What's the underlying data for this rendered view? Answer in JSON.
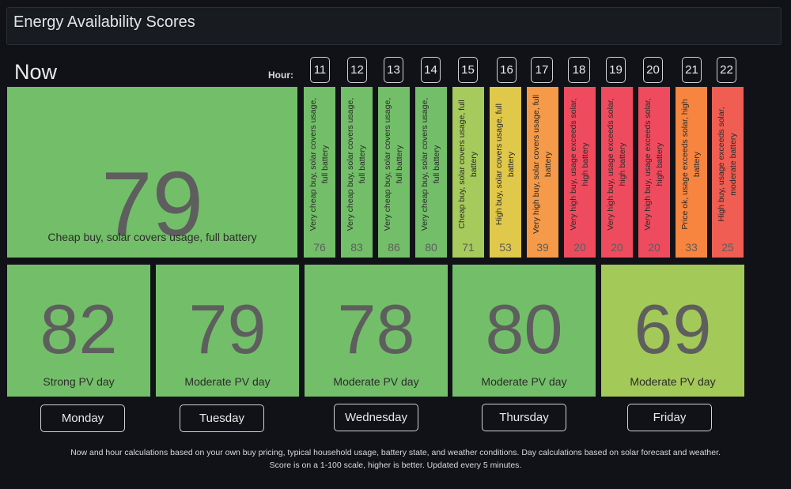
{
  "panel": {
    "title": "Energy Availability Scores"
  },
  "now": {
    "label": "Now",
    "score": "79",
    "description": "Cheap buy, solar covers usage, full battery",
    "color": "#73bf69"
  },
  "hour_label": "Hour:",
  "hours": [
    {
      "hour": "11",
      "score": "76",
      "text": "Very cheap buy, solar covers usage, full battery",
      "color": "#73bf69"
    },
    {
      "hour": "12",
      "score": "83",
      "text": "Very cheap buy, solar covers usage, full battery",
      "color": "#73bf69"
    },
    {
      "hour": "13",
      "score": "86",
      "text": "Very cheap buy, solar covers usage, full battery",
      "color": "#73bf69"
    },
    {
      "hour": "14",
      "score": "80",
      "text": "Very cheap buy, solar covers usage, full battery",
      "color": "#73bf69"
    },
    {
      "hour": "15",
      "score": "71",
      "text": "Cheap buy, solar covers usage, full battery",
      "color": "#a6ca5b"
    },
    {
      "hour": "16",
      "score": "53",
      "text": "High buy, solar covers usage, full battery",
      "color": "#e0c84a"
    },
    {
      "hour": "17",
      "score": "39",
      "text": "Very high buy, solar covers usage, full battery",
      "color": "#f49a48"
    },
    {
      "hour": "18",
      "score": "20",
      "text": "Very high buy, usage exceeds solar, high battery",
      "color": "#ef4b5e"
    },
    {
      "hour": "19",
      "score": "20",
      "text": "Very high buy, usage exceeds solar, high battery",
      "color": "#ef4b5e"
    },
    {
      "hour": "20",
      "score": "20",
      "text": "Very high buy, usage exceeds solar, high battery",
      "color": "#ef4b5e"
    },
    {
      "hour": "21",
      "score": "33",
      "text": "Price ok, usage exceeds solar, high battery",
      "color": "#f7853f"
    },
    {
      "hour": "22",
      "score": "25",
      "text": "High buy, usage exceeds solar, moderate battery",
      "color": "#f05d52"
    }
  ],
  "days": [
    {
      "name": "Monday",
      "score": "82",
      "description": "Strong PV day",
      "color": "#73bf69"
    },
    {
      "name": "Tuesday",
      "score": "79",
      "description": "Moderate PV day",
      "color": "#73bf69"
    },
    {
      "name": "Wednesday",
      "score": "78",
      "description": "Moderate PV day",
      "color": "#73bf69"
    },
    {
      "name": "Thursday",
      "score": "80",
      "description": "Moderate PV day",
      "color": "#73bf69"
    },
    {
      "name": "Friday",
      "score": "69",
      "description": "Moderate PV day",
      "color": "#a3c958"
    }
  ],
  "footer": {
    "line1": "Now and hour calculations based on your own buy pricing, typical household usage, battery state, and weather conditions. Day calculations based on solar forecast and weather.",
    "line2": "Score is on a 1-100 scale, higher is better. Updated every 5 minutes."
  }
}
